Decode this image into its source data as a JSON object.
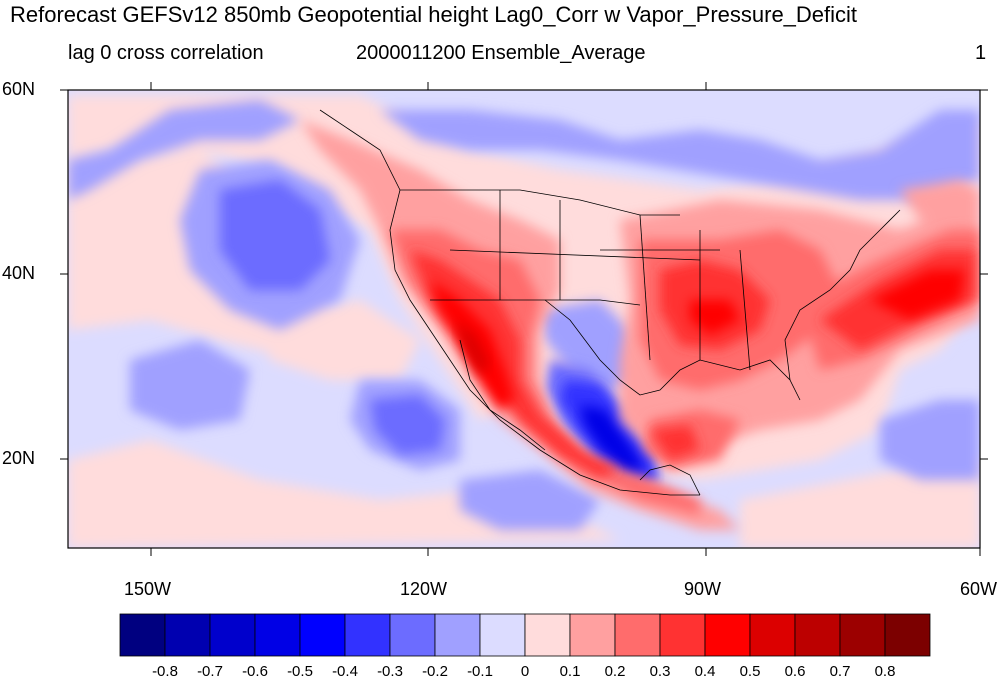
{
  "title": "Reforecast GEFSv12 850mb Geopotential height Lag0_Corr w Vapor_Pressure_Deficit",
  "subtitle_left": "lag 0 cross correlation",
  "subtitle_center": "2000011200 Ensemble_Average",
  "subtitle_right": "1",
  "lat_labels": [
    "60N",
    "40N",
    "20N"
  ],
  "lon_labels": [
    "150W",
    "120W",
    "90W",
    "60W"
  ],
  "colorbar": {
    "tick_labels": [
      "-0.8",
      "-0.7",
      "-0.6",
      "-0.5",
      "-0.4",
      "-0.3",
      "-0.2",
      "-0.1",
      "0",
      "0.1",
      "0.2",
      "0.3",
      "0.4",
      "0.5",
      "0.6",
      "0.7",
      "0.8"
    ],
    "colors": [
      "#000080",
      "#0000b0",
      "#0000cc",
      "#0000e6",
      "#0000ff",
      "#3232ff",
      "#6c6cff",
      "#a0a0ff",
      "#dcdcff",
      "#ffdcdc",
      "#ffa0a0",
      "#ff6c6c",
      "#ff3232",
      "#ff0000",
      "#dc0000",
      "#bc0000",
      "#9c0000",
      "#7c0000"
    ]
  }
}
